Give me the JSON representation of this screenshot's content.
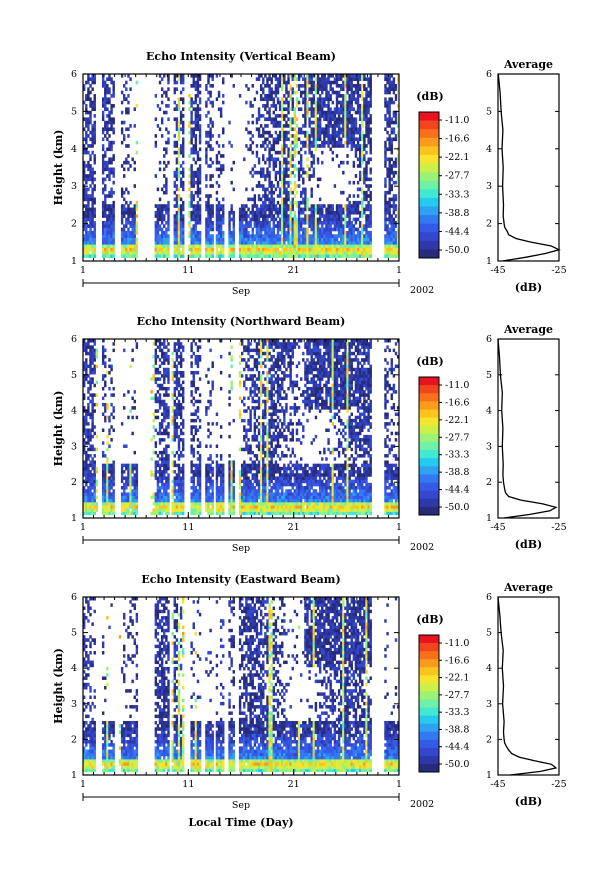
{
  "figure": {
    "xlabel": "Local Time (Day)"
  },
  "colorbar": {
    "unit": "(dB)",
    "ticks": [
      "-11.0",
      "-16.6",
      "-22.1",
      "-27.7",
      "-33.3",
      "-38.8",
      "-44.4",
      "-50.0"
    ],
    "colors": [
      "#e8131e",
      "#f2441d",
      "#f86f1c",
      "#fb9b1c",
      "#fdc31e",
      "#f6e52e",
      "#cbf04a",
      "#9cf275",
      "#6ff0a6",
      "#41e8d2",
      "#25cbee",
      "#2fa2f4",
      "#3379f1",
      "#355be6",
      "#3448cf",
      "#2e39a9",
      "#262b7c"
    ]
  },
  "chart_data": [
    {
      "type": "heatmap",
      "title": "Echo Intensity (Vertical Beam)",
      "ylabel": "Height (km)",
      "x_ticks": [
        "1",
        "11",
        "21",
        "1"
      ],
      "x_range_days": [
        1,
        31
      ],
      "month_label": "Sep",
      "year_label": "2002",
      "y_ticks": [
        "1",
        "2",
        "3",
        "4",
        "5",
        "6"
      ],
      "ylim": [
        1,
        6
      ],
      "clim_dB": [
        -50.0,
        -11.0
      ],
      "colorbar_label": "(dB)",
      "data_gaps_days": [
        [
          2.2,
          2.9
        ],
        [
          4.0,
          4.5
        ],
        [
          6.3,
          7.7
        ],
        [
          9.3,
          9.6
        ],
        [
          10.6,
          11.2
        ],
        [
          12.2,
          12.6
        ],
        [
          13.3,
          13.6
        ],
        [
          14.5,
          14.8
        ],
        [
          15.5,
          15.8
        ],
        [
          28.4,
          29.6
        ]
      ],
      "average_profile": {
        "title": "Average",
        "xlabel": "(dB)",
        "x_ticks": [
          "-45",
          "-25"
        ],
        "xlim": [
          -45,
          -25
        ],
        "height_km": [
          1.0,
          1.1,
          1.2,
          1.3,
          1.4,
          1.5,
          1.6,
          1.7,
          1.8,
          1.9,
          2.0,
          2.2,
          2.5,
          3.0,
          3.5,
          4.0,
          4.5,
          5.0,
          5.5,
          6.0
        ],
        "values_dB": [
          -43.5,
          -36.0,
          -29.5,
          -25.0,
          -27.5,
          -34.0,
          -39.0,
          -41.5,
          -42.0,
          -42.8,
          -43.0,
          -43.3,
          -43.2,
          -43.5,
          -43.3,
          -43.7,
          -43.4,
          -44.0,
          -44.3,
          -44.9
        ]
      }
    },
    {
      "type": "heatmap",
      "title": "Echo Intensity (Northward Beam)",
      "ylabel": "Height (km)",
      "x_ticks": [
        "1",
        "11",
        "21",
        "1"
      ],
      "x_range_days": [
        1,
        31
      ],
      "month_label": "Sep",
      "year_label": "2002",
      "y_ticks": [
        "1",
        "2",
        "3",
        "4",
        "5",
        "6"
      ],
      "ylim": [
        1,
        6
      ],
      "clim_dB": [
        -50.0,
        -11.0
      ],
      "colorbar_label": "(dB)",
      "data_gaps_days": [
        [
          2.2,
          2.9
        ],
        [
          4.0,
          4.5
        ],
        [
          6.3,
          7.7
        ],
        [
          9.3,
          9.6
        ],
        [
          10.6,
          11.2
        ],
        [
          12.2,
          12.6
        ],
        [
          13.3,
          13.6
        ],
        [
          14.5,
          14.8
        ],
        [
          15.5,
          15.8
        ],
        [
          28.4,
          29.6
        ]
      ],
      "average_profile": {
        "title": "Average",
        "xlabel": "(dB)",
        "x_ticks": [
          "-45",
          "-25"
        ],
        "xlim": [
          -45,
          -25
        ],
        "height_km": [
          1.0,
          1.1,
          1.2,
          1.3,
          1.4,
          1.5,
          1.6,
          1.7,
          1.8,
          1.9,
          2.0,
          2.2,
          2.5,
          3.0,
          3.5,
          4.0,
          4.5,
          5.0,
          5.5,
          6.0
        ],
        "values_dB": [
          -43.0,
          -34.5,
          -28.0,
          -26.0,
          -30.5,
          -37.5,
          -41.5,
          -42.5,
          -42.8,
          -43.0,
          -43.2,
          -43.4,
          -43.3,
          -43.6,
          -43.4,
          -43.8,
          -43.6,
          -44.2,
          -44.5,
          -45.0
        ]
      }
    },
    {
      "type": "heatmap",
      "title": "Echo Intensity (Eastward Beam)",
      "ylabel": "Height (km)",
      "x_ticks": [
        "1",
        "11",
        "21",
        "1"
      ],
      "x_range_days": [
        1,
        31
      ],
      "month_label": "Sep",
      "year_label": "2002",
      "y_ticks": [
        "1",
        "2",
        "3",
        "4",
        "5",
        "6"
      ],
      "ylim": [
        1,
        6
      ],
      "clim_dB": [
        -50.0,
        -11.0
      ],
      "colorbar_label": "(dB)",
      "data_gaps_days": [
        [
          2.2,
          2.9
        ],
        [
          4.0,
          4.5
        ],
        [
          6.3,
          7.7
        ],
        [
          9.3,
          9.6
        ],
        [
          10.6,
          11.2
        ],
        [
          12.2,
          12.6
        ],
        [
          13.3,
          13.6
        ],
        [
          14.5,
          14.8
        ],
        [
          15.5,
          15.8
        ],
        [
          28.4,
          29.6
        ]
      ],
      "average_profile": {
        "title": "Average",
        "xlabel": "(dB)",
        "x_ticks": [
          "-45",
          "-25"
        ],
        "xlim": [
          -45,
          -25
        ],
        "height_km": [
          1.0,
          1.1,
          1.2,
          1.3,
          1.4,
          1.5,
          1.6,
          1.7,
          1.8,
          1.9,
          2.0,
          2.2,
          2.5,
          3.0,
          3.5,
          4.0,
          4.5,
          5.0,
          5.5,
          6.0
        ],
        "values_dB": [
          -41.0,
          -31.0,
          -26.0,
          -27.5,
          -33.0,
          -38.0,
          -40.5,
          -41.5,
          -42.2,
          -42.8,
          -43.0,
          -43.2,
          -43.0,
          -43.5,
          -43.2,
          -43.6,
          -43.3,
          -44.0,
          -44.4,
          -45.0
        ]
      }
    }
  ]
}
